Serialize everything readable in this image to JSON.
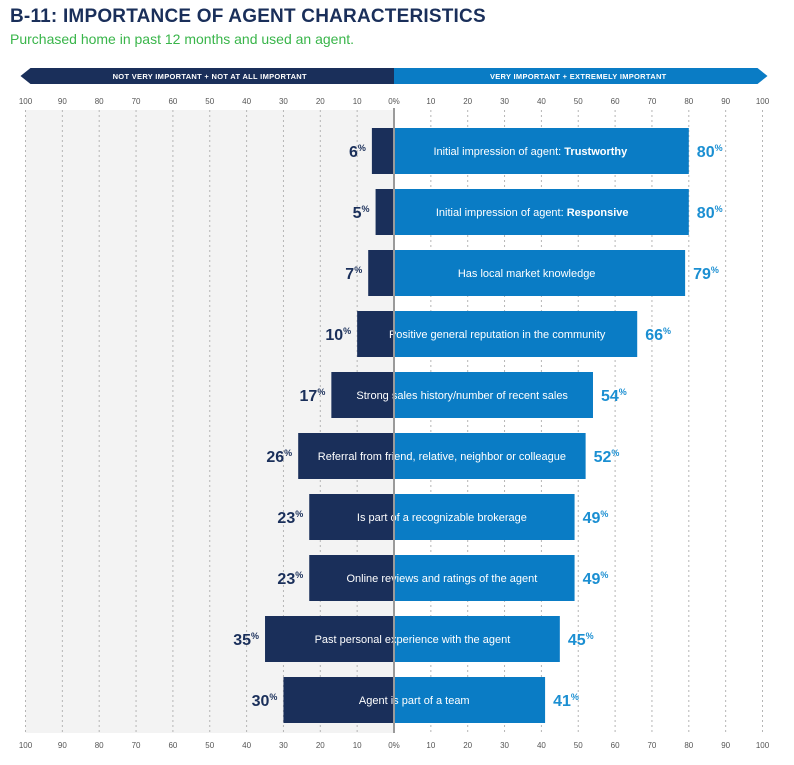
{
  "title": "B-11: IMPORTANCE OF AGENT CHARACTERISTICS",
  "subtitle": "Purchased home in past 12 months and used an agent.",
  "colors": {
    "left_bar": "#1a2f5a",
    "right_bar": "#0a7cc5",
    "left_value": "#1a2f5a",
    "right_value": "#1b8fd2",
    "subtitle": "#39b54a",
    "plot_background": "#f3f3f3",
    "gridline": "#b5b5b5",
    "center_line": "#9a9a9a"
  },
  "chart_data": {
    "type": "bar",
    "orientation": "horizontal-diverging",
    "left_header": "NOT VERY IMPORTANT + NOT AT ALL IMPORTANT",
    "right_header": "VERY IMPORTANT + EXTREMELY IMPORTANT",
    "x_ticks": [
      "100",
      "90",
      "80",
      "70",
      "60",
      "50",
      "40",
      "30",
      "20",
      "10",
      "0%",
      "10",
      "20",
      "30",
      "40",
      "50",
      "60",
      "70",
      "80",
      "90",
      "100"
    ],
    "xlim": [
      -100,
      100
    ],
    "grid": true,
    "unit_suffix": "%",
    "categories": [
      {
        "prefix": "Initial impression of agent: ",
        "emphasis": "Trustworthy"
      },
      {
        "prefix": "Initial impression of agent: ",
        "emphasis": "Responsive"
      },
      {
        "prefix": "Has local market knowledge",
        "emphasis": ""
      },
      {
        "prefix": "Positive general reputation in the community",
        "emphasis": ""
      },
      {
        "prefix": "Strong sales history/number of recent sales",
        "emphasis": ""
      },
      {
        "prefix": "Referral from friend, relative, neighbor or colleague",
        "emphasis": ""
      },
      {
        "prefix": "Is part of a recognizable brokerage",
        "emphasis": ""
      },
      {
        "prefix": "Online reviews and ratings of the agent",
        "emphasis": ""
      },
      {
        "prefix": "Past personal experience with the agent",
        "emphasis": ""
      },
      {
        "prefix": "Agent is part of a team",
        "emphasis": ""
      }
    ],
    "series": [
      {
        "side": "left",
        "values": [
          6,
          5,
          7,
          10,
          17,
          26,
          23,
          23,
          35,
          30
        ]
      },
      {
        "side": "right",
        "values": [
          80,
          80,
          79,
          66,
          54,
          52,
          49,
          49,
          45,
          41
        ]
      }
    ]
  }
}
